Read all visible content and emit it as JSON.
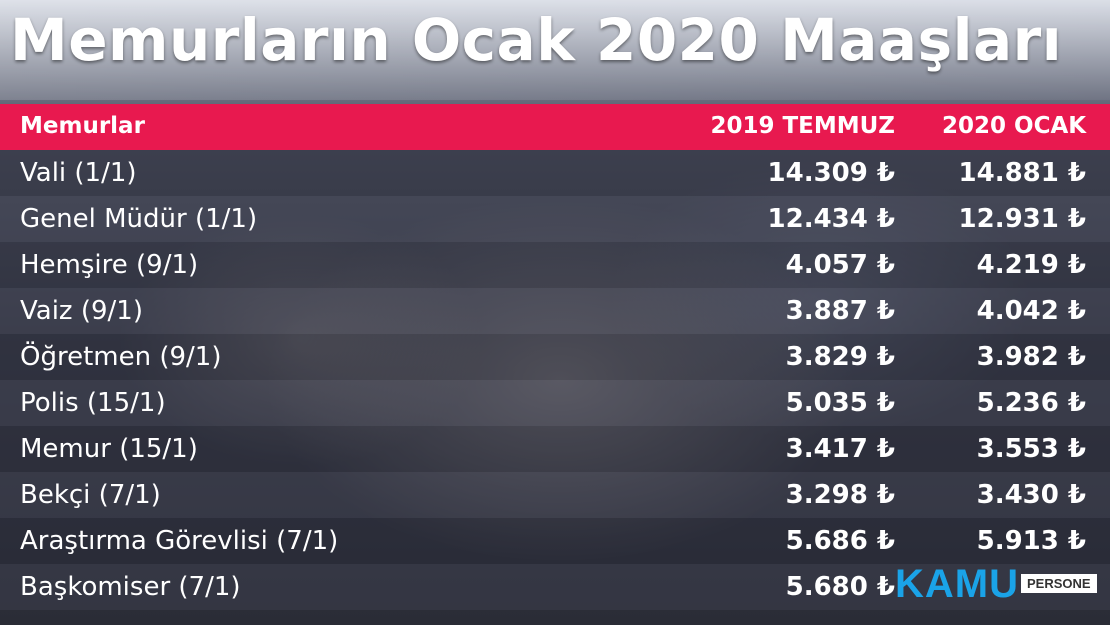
{
  "title": "Memurların Ocak 2020 Maaşları",
  "header": {
    "col1": "Memurlar",
    "col2": "2019 TEMMUZ",
    "col3": "2020 OCAK"
  },
  "rows": [
    {
      "name": "Vali (1/1)",
      "temmuz_2019": "14.309 ₺",
      "ocak_2020": "14.881 ₺"
    },
    {
      "name": "Genel Müdür (1/1)",
      "temmuz_2019": "12.434 ₺",
      "ocak_2020": "12.931 ₺"
    },
    {
      "name": "Hemşire (9/1)",
      "temmuz_2019": "4.057 ₺",
      "ocak_2020": "4.219 ₺"
    },
    {
      "name": "Vaiz (9/1)",
      "temmuz_2019": "3.887 ₺",
      "ocak_2020": "4.042 ₺"
    },
    {
      "name": "Öğretmen (9/1)",
      "temmuz_2019": "3.829 ₺",
      "ocak_2020": "3.982 ₺"
    },
    {
      "name": "Polis (15/1)",
      "temmuz_2019": "5.035 ₺",
      "ocak_2020": "5.236 ₺"
    },
    {
      "name": "Memur (15/1)",
      "temmuz_2019": "3.417 ₺",
      "ocak_2020": "3.553 ₺"
    },
    {
      "name": "Bekçi (7/1)",
      "temmuz_2019": "3.298 ₺",
      "ocak_2020": "3.430 ₺"
    },
    {
      "name": "Araştırma Görevlisi (7/1)",
      "temmuz_2019": "5.686 ₺",
      "ocak_2020": "5.913 ₺"
    },
    {
      "name": "Başkomiser (7/1)",
      "temmuz_2019": "5.680 ₺",
      "ocak_2020": ""
    }
  ],
  "watermark": {
    "brand": "KAMU",
    "tag": "PERSONE"
  }
}
